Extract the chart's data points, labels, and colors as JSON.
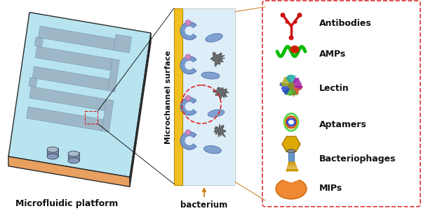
{
  "background_color": "#ffffff",
  "labels": {
    "platform": "Microfluidic platform",
    "channel": "Microchannel surface",
    "bacterium": "bacterium"
  },
  "legend_items": [
    {
      "name": "Antibodies"
    },
    {
      "name": "AMPs"
    },
    {
      "name": "Lectin"
    },
    {
      "name": "Aptamers"
    },
    {
      "name": "Bacteriophages"
    },
    {
      "name": "MIPs"
    }
  ],
  "platform_top": "#b8e4f0",
  "platform_top_light": "#d0eef8",
  "platform_bottom": "#e8a060",
  "platform_right": "#90b8c0",
  "platform_dark_edge": "#2a2a2a",
  "channel_gold": "#f0c020",
  "channel_bg": "#ddeef8",
  "channel_label_color": "#111111",
  "bacterium_color": "#6688bb",
  "bacterium_dark": "#4466aa",
  "capture_color": "#6688bb",
  "dot_color": "#555555",
  "red_dashed": "#dd2222",
  "legend_border": "#dd3333",
  "text_bold_color": "#111111",
  "bacterium_label_color": "#111111",
  "arrow_color": "#cc7700",
  "connect_line_color": "#cc8830"
}
